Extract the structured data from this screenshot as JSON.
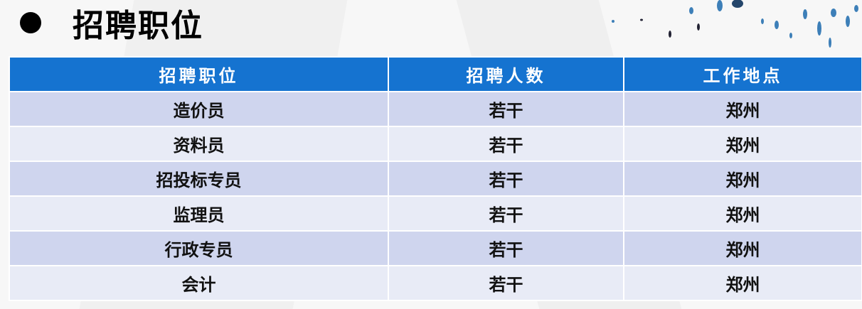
{
  "title": "招聘职位",
  "colors": {
    "header": "#1573d0",
    "row_odd": "#cfd5ee",
    "row_even": "#e8ebf6"
  },
  "table": {
    "headers": [
      "招聘职位",
      "招聘人数",
      "工作地点"
    ],
    "rows": [
      [
        "造价员",
        "若干",
        "郑州"
      ],
      [
        "资料员",
        "若干",
        "郑州"
      ],
      [
        "招投标专员",
        "若干",
        "郑州"
      ],
      [
        "监理员",
        "若干",
        "郑州"
      ],
      [
        "行政专员",
        "若干",
        "郑州"
      ],
      [
        "会计",
        "若干",
        "郑州"
      ]
    ]
  }
}
